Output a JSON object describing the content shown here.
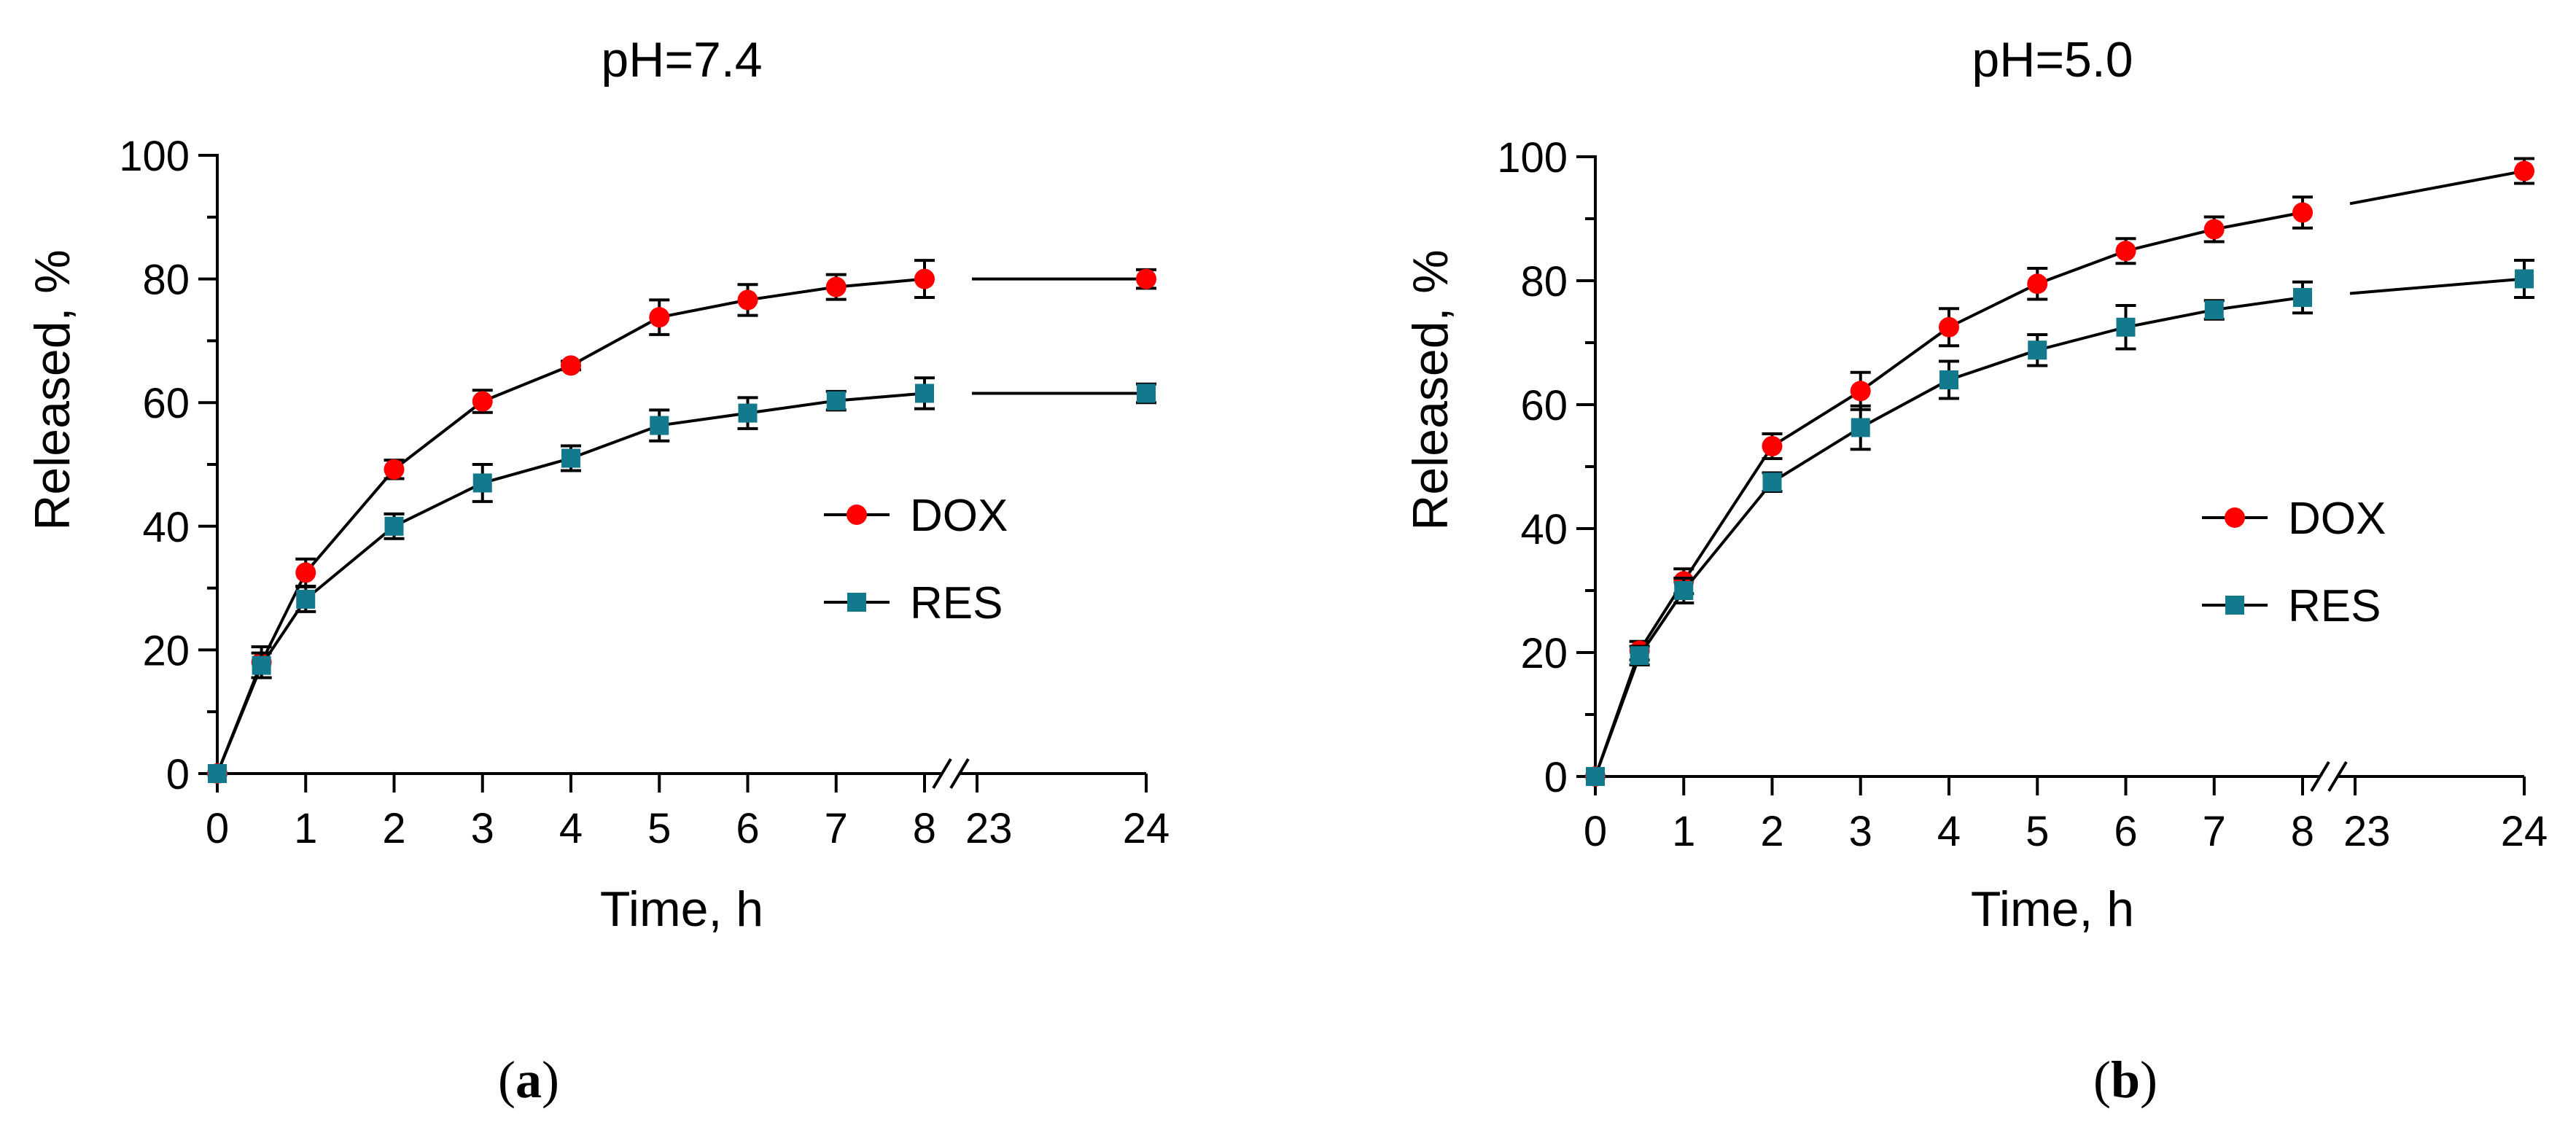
{
  "colors": {
    "dox": "#ff0000",
    "res": "#13798c",
    "axis": "#000000"
  },
  "chart_data": [
    {
      "type": "line",
      "panel_caption": "(a)",
      "caption_letter": "a",
      "title": "pH=7.4",
      "xlabel": "Time, h",
      "ylabel": "Released, %",
      "ylim": [
        0,
        100
      ],
      "yticks": [
        "0",
        "20",
        "40",
        "60",
        "80",
        "100"
      ],
      "xticks": [
        "0",
        "1",
        "2",
        "3",
        "4",
        "5",
        "6",
        "7",
        "8",
        "23",
        "24"
      ],
      "axis_break": [
        8,
        23
      ],
      "legend_position": "right-middle",
      "series": [
        {
          "name": "DOX",
          "marker": "circle",
          "x": [
            0,
            0.5,
            1,
            2,
            3,
            4,
            5,
            6,
            7,
            8,
            24
          ],
          "y": [
            0,
            18,
            32.5,
            49.2,
            60.2,
            66.0,
            73.8,
            76.6,
            78.7,
            80.0,
            80.0
          ],
          "err": [
            0,
            2.5,
            2.2,
            1.5,
            1.8,
            0.7,
            2.8,
            2.5,
            2.0,
            3.0,
            1.5
          ]
        },
        {
          "name": "RES",
          "marker": "square",
          "x": [
            0,
            0.5,
            1,
            2,
            3,
            4,
            5,
            6,
            7,
            8,
            24
          ],
          "y": [
            0,
            17.5,
            28.2,
            40.0,
            47.0,
            51.0,
            56.3,
            58.3,
            60.3,
            61.5,
            61.5
          ],
          "err": [
            0,
            2.0,
            2.0,
            2.0,
            3.0,
            2.0,
            2.5,
            2.5,
            1.5,
            2.5,
            1.5
          ]
        }
      ]
    },
    {
      "type": "line",
      "panel_caption": "(b)",
      "caption_letter": "b",
      "title": "pH=5.0",
      "xlabel": "Time, h",
      "ylabel": "Released, %",
      "ylim": [
        0,
        100
      ],
      "yticks": [
        "0",
        "20",
        "40",
        "60",
        "80",
        "100"
      ],
      "xticks": [
        "0",
        "1",
        "2",
        "3",
        "4",
        "5",
        "6",
        "7",
        "8",
        "23",
        "24"
      ],
      "axis_break": [
        8,
        23
      ],
      "legend_position": "right-middle",
      "series": [
        {
          "name": "DOX",
          "marker": "circle",
          "x": [
            0,
            0.5,
            1,
            2,
            3,
            4,
            5,
            6,
            7,
            8,
            24
          ],
          "y": [
            0,
            20.3,
            31.5,
            53.3,
            62.2,
            72.5,
            79.5,
            84.8,
            88.3,
            91.0,
            97.7
          ],
          "err": [
            0,
            1.5,
            2.0,
            2.0,
            3.0,
            3.0,
            2.5,
            2.0,
            2.0,
            2.5,
            2.0
          ]
        },
        {
          "name": "RES",
          "marker": "square",
          "x": [
            0,
            0.5,
            1,
            2,
            3,
            4,
            5,
            6,
            7,
            8,
            24
          ],
          "y": [
            0,
            19.5,
            30.0,
            47.5,
            56.3,
            64.0,
            68.8,
            72.5,
            75.3,
            77.3,
            80.3
          ],
          "err": [
            0,
            1.5,
            2.0,
            1.5,
            3.5,
            3.0,
            2.5,
            3.5,
            1.5,
            2.5,
            3.0
          ]
        }
      ]
    }
  ]
}
